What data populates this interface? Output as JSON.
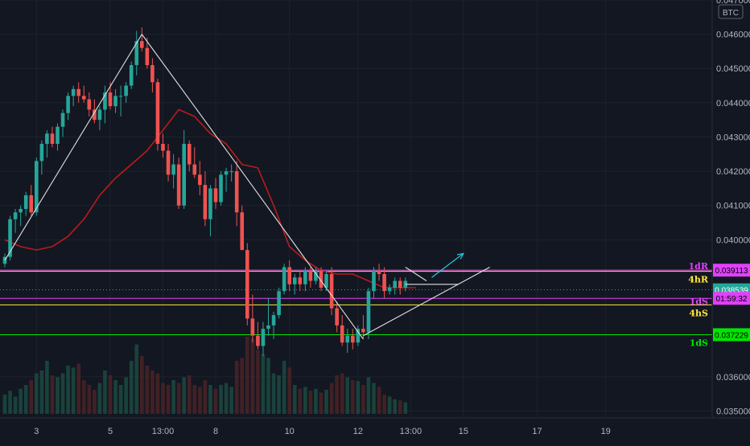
{
  "chart_data": {
    "type": "candlestick",
    "currency": "BTC",
    "ylim": [
      0.0348,
      0.047
    ],
    "y_ticks": [
      "0.047000",
      "0.046000",
      "0.045000",
      "0.044000",
      "0.043000",
      "0.042000",
      "0.041000",
      "0.040000",
      "0.036000",
      "0.035000"
    ],
    "y_tick_values": [
      0.047,
      0.046,
      0.045,
      0.044,
      0.043,
      0.042,
      0.041,
      0.04,
      0.036,
      0.035
    ],
    "x_ticks": [
      {
        "label": "3",
        "bar": 6
      },
      {
        "label": "5",
        "bar": 20
      },
      {
        "label": "13:00",
        "bar": 30
      },
      {
        "label": "8",
        "bar": 40
      },
      {
        "label": "10",
        "bar": 54
      },
      {
        "label": "12",
        "bar": 67
      },
      {
        "label": "13:00",
        "bar": 77
      },
      {
        "label": "15",
        "bar": 87
      },
      {
        "label": "17",
        "bar": 101
      },
      {
        "label": "19",
        "bar": 114
      }
    ],
    "candles": [
      [
        0.0393,
        0.0396,
        0.0392,
        0.0395
      ],
      [
        0.0395,
        0.0407,
        0.0394,
        0.0406
      ],
      [
        0.0406,
        0.0409,
        0.0402,
        0.0408
      ],
      [
        0.0408,
        0.041,
        0.0404,
        0.0409
      ],
      [
        0.0409,
        0.0414,
        0.0407,
        0.0413
      ],
      [
        0.0413,
        0.0416,
        0.0407,
        0.0408
      ],
      [
        0.0408,
        0.0424,
        0.0407,
        0.0423
      ],
      [
        0.0423,
        0.0429,
        0.0419,
        0.0428
      ],
      [
        0.0428,
        0.0432,
        0.0424,
        0.0431
      ],
      [
        0.0431,
        0.0433,
        0.0427,
        0.0428
      ],
      [
        0.0428,
        0.0434,
        0.0426,
        0.0433
      ],
      [
        0.0433,
        0.0438,
        0.043,
        0.0437
      ],
      [
        0.0437,
        0.0443,
        0.0435,
        0.0442
      ],
      [
        0.0442,
        0.0445,
        0.0439,
        0.0444
      ],
      [
        0.0444,
        0.0446,
        0.044,
        0.0442
      ],
      [
        0.0442,
        0.0445,
        0.044,
        0.0441
      ],
      [
        0.0441,
        0.0443,
        0.0436,
        0.0438
      ],
      [
        0.0438,
        0.0441,
        0.0434,
        0.0435
      ],
      [
        0.0435,
        0.0439,
        0.0432,
        0.0438
      ],
      [
        0.0438,
        0.0445,
        0.0434,
        0.0443
      ],
      [
        0.0443,
        0.0446,
        0.0438,
        0.0439
      ],
      [
        0.0439,
        0.0444,
        0.0437,
        0.0442
      ],
      [
        0.0442,
        0.0445,
        0.0436,
        0.0442
      ],
      [
        0.0442,
        0.0446,
        0.044,
        0.0445
      ],
      [
        0.0445,
        0.0452,
        0.0444,
        0.0451
      ],
      [
        0.0451,
        0.0461,
        0.0448,
        0.0458
      ],
      [
        0.0458,
        0.0462,
        0.0455,
        0.0456
      ],
      [
        0.0456,
        0.0459,
        0.045,
        0.0451
      ],
      [
        0.0451,
        0.0453,
        0.0443,
        0.0446
      ],
      [
        0.0446,
        0.0447,
        0.0426,
        0.0428
      ],
      [
        0.0428,
        0.0431,
        0.0424,
        0.0426
      ],
      [
        0.0426,
        0.0428,
        0.0417,
        0.0419
      ],
      [
        0.0419,
        0.0425,
        0.0415,
        0.0422
      ],
      [
        0.0422,
        0.0424,
        0.0409,
        0.041
      ],
      [
        0.041,
        0.0432,
        0.0409,
        0.0428
      ],
      [
        0.0428,
        0.0429,
        0.042,
        0.0422
      ],
      [
        0.0422,
        0.0427,
        0.0418,
        0.0419
      ],
      [
        0.0419,
        0.0423,
        0.0413,
        0.0416
      ],
      [
        0.0416,
        0.042,
        0.0404,
        0.0406
      ],
      [
        0.0406,
        0.0416,
        0.0401,
        0.0415
      ],
      [
        0.0415,
        0.0418,
        0.0409,
        0.0411
      ],
      [
        0.0411,
        0.042,
        0.041,
        0.0419
      ],
      [
        0.0419,
        0.0421,
        0.0414,
        0.042
      ],
      [
        0.042,
        0.0422,
        0.0417,
        0.042
      ],
      [
        0.042,
        0.0423,
        0.0404,
        0.0408
      ],
      [
        0.0408,
        0.041,
        0.0398,
        0.0397
      ],
      [
        0.0397,
        0.0399,
        0.0375,
        0.0377
      ],
      [
        0.0377,
        0.0384,
        0.037,
        0.0372
      ],
      [
        0.0372,
        0.0376,
        0.0368,
        0.0369
      ],
      [
        0.0369,
        0.0376,
        0.0366,
        0.0374
      ],
      [
        0.0374,
        0.0383,
        0.0372,
        0.0375
      ],
      [
        0.0375,
        0.0379,
        0.0371,
        0.0378
      ],
      [
        0.0378,
        0.0386,
        0.0377,
        0.0385
      ],
      [
        0.0385,
        0.0393,
        0.0384,
        0.0392
      ],
      [
        0.0392,
        0.0394,
        0.0385,
        0.0387
      ],
      [
        0.0387,
        0.039,
        0.0384,
        0.0389
      ],
      [
        0.0389,
        0.0391,
        0.0385,
        0.0387
      ],
      [
        0.0387,
        0.0392,
        0.0385,
        0.0391
      ],
      [
        0.0391,
        0.0392,
        0.0386,
        0.0388
      ],
      [
        0.0388,
        0.0392,
        0.0387,
        0.0391
      ],
      [
        0.0391,
        0.0392,
        0.0385,
        0.0386
      ],
      [
        0.0386,
        0.0391,
        0.0385,
        0.039
      ],
      [
        0.039,
        0.0392,
        0.0378,
        0.038
      ],
      [
        0.038,
        0.0382,
        0.0373,
        0.0375
      ],
      [
        0.0375,
        0.0378,
        0.0369,
        0.037
      ],
      [
        0.037,
        0.0374,
        0.0367,
        0.0372
      ],
      [
        0.0372,
        0.0374,
        0.0368,
        0.037
      ],
      [
        0.037,
        0.0375,
        0.0369,
        0.0374
      ],
      [
        0.0374,
        0.0378,
        0.0371,
        0.0373
      ],
      [
        0.0373,
        0.0386,
        0.0371,
        0.0385
      ],
      [
        0.0385,
        0.0392,
        0.0383,
        0.0391
      ],
      [
        0.0391,
        0.0393,
        0.0388,
        0.039
      ],
      [
        0.039,
        0.0392,
        0.0383,
        0.0385
      ],
      [
        0.0385,
        0.0387,
        0.0384,
        0.0386
      ],
      [
        0.0386,
        0.0389,
        0.0384,
        0.0388
      ],
      [
        0.0388,
        0.0389,
        0.0384,
        0.0386
      ],
      [
        0.0386,
        0.0389,
        0.0385,
        0.0388
      ]
    ],
    "volumes": [
      0.2,
      0.24,
      0.18,
      0.26,
      0.3,
      0.35,
      0.42,
      0.45,
      0.55,
      0.4,
      0.38,
      0.42,
      0.5,
      0.48,
      0.52,
      0.35,
      0.3,
      0.25,
      0.32,
      0.45,
      0.4,
      0.35,
      0.3,
      0.38,
      0.55,
      0.72,
      0.6,
      0.5,
      0.45,
      0.42,
      0.32,
      0.3,
      0.35,
      0.32,
      0.38,
      0.4,
      0.3,
      0.28,
      0.35,
      0.3,
      0.26,
      0.3,
      0.32,
      0.28,
      0.55,
      0.58,
      0.8,
      0.78,
      0.66,
      0.62,
      0.58,
      0.42,
      0.4,
      0.55,
      0.48,
      0.3,
      0.26,
      0.28,
      0.24,
      0.26,
      0.22,
      0.25,
      0.32,
      0.4,
      0.42,
      0.38,
      0.35,
      0.34,
      0.3,
      0.38,
      0.32,
      0.28,
      0.2,
      0.18,
      0.15,
      0.14,
      0.12
    ],
    "moving_average": [
      [
        0,
        0.04
      ],
      [
        3,
        0.0398
      ],
      [
        6,
        0.0397
      ],
      [
        9,
        0.0398
      ],
      [
        12,
        0.0401
      ],
      [
        15,
        0.0406
      ],
      [
        18,
        0.0413
      ],
      [
        21,
        0.0418
      ],
      [
        24,
        0.0422
      ],
      [
        27,
        0.0426
      ],
      [
        30,
        0.0432
      ],
      [
        33,
        0.0438
      ],
      [
        36,
        0.0436
      ],
      [
        39,
        0.0431
      ],
      [
        42,
        0.0428
      ],
      [
        45,
        0.0422
      ],
      [
        48,
        0.0421
      ],
      [
        51,
        0.041
      ],
      [
        54,
        0.0398
      ],
      [
        57,
        0.0394
      ],
      [
        60,
        0.0391
      ],
      [
        63,
        0.039
      ],
      [
        66,
        0.039
      ],
      [
        69,
        0.0388
      ],
      [
        72,
        0.0386
      ],
      [
        75,
        0.0386
      ],
      [
        78,
        0.0386
      ]
    ],
    "trend_lines": [
      [
        [
          0,
          0.0394
        ],
        [
          26,
          0.046
        ]
      ],
      [
        [
          26,
          0.046
        ],
        [
          44,
          0.0422
        ]
      ],
      [
        [
          44,
          0.0422
        ],
        [
          68,
          0.0371
        ]
      ],
      [
        [
          68,
          0.0372
        ],
        [
          92,
          0.0392
        ]
      ],
      [
        [
          76,
          0.0392
        ],
        [
          80,
          0.0388
        ]
      ],
      [
        [
          76,
          0.0387
        ],
        [
          86,
          0.0387
        ]
      ]
    ],
    "projection_arrow": [
      [
        81,
        0.0389
      ],
      [
        87,
        0.0396
      ]
    ],
    "levels": [
      {
        "value": 0.039113,
        "color": "#e040fb",
        "label": "0.039113",
        "tag": "1dR"
      },
      {
        "value": 0.03908,
        "color": "#ffeb3b",
        "label": "",
        "tag": "4hR"
      },
      {
        "value": 0.038539,
        "color": "#26a69a",
        "label": "0.038539",
        "tag": "",
        "dotted": true
      },
      {
        "value": 0.03829,
        "color": "#e040fb",
        "label": "01:59:32",
        "tag": "1dS"
      },
      {
        "value": 0.0381,
        "color": "#ffeb3b",
        "label": "",
        "tag": "4hS"
      },
      {
        "value": 0.037229,
        "color": "#00e600",
        "label": "0.037229",
        "tag": "1dS"
      }
    ],
    "colors": {
      "up": "#26a69a",
      "down": "#ef5350",
      "background": "#131722",
      "grid": "#1e222d",
      "moving_average": "#b71c1c",
      "trend": "#e0e0e0",
      "arrow": "#26c6da"
    },
    "grid": true
  }
}
